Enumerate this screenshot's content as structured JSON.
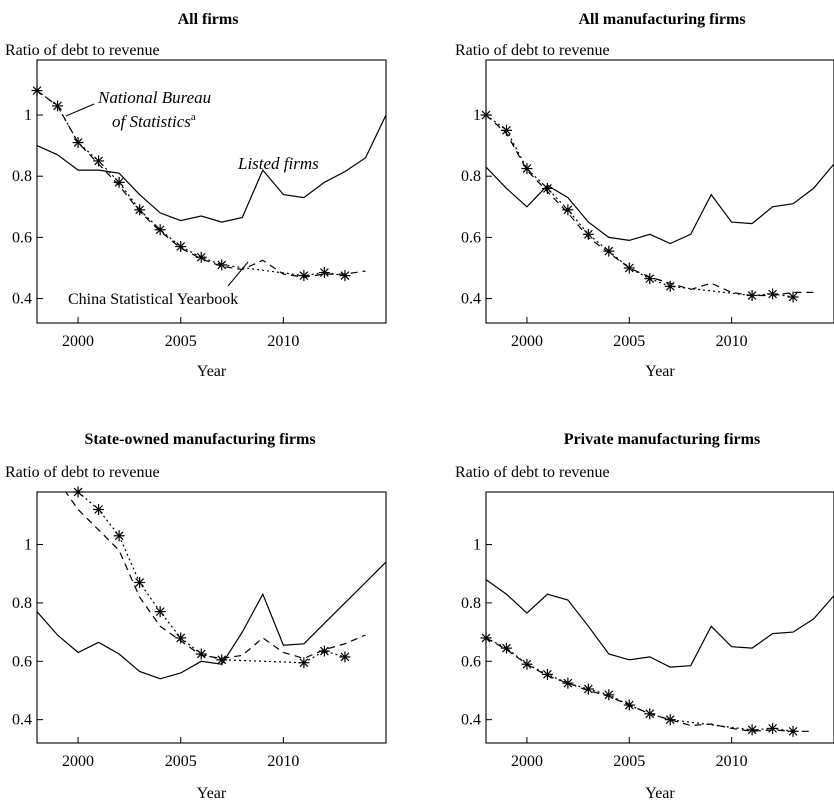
{
  "chart_data": [
    {
      "type": "line",
      "title": "All firms",
      "ylabel": "Ratio of debt to revenue",
      "xlabel": "Year",
      "xlim": [
        1998,
        2015
      ],
      "ylim": [
        0.32,
        1.18
      ],
      "xticks": [
        2000,
        2005,
        2010
      ],
      "yticks": [
        0.4,
        0.6,
        0.8,
        1
      ],
      "ytick_labels": [
        "0.4",
        "0.6",
        "0.8",
        "1"
      ],
      "annotations": {
        "listed": "Listed firms",
        "nbs_line1": "National Bureau",
        "nbs_line2": "of Statistics",
        "nbs_sup": "a",
        "csy": "China Statistical Yearbook"
      },
      "series": [
        {
          "name": "Listed firms",
          "style": "solid",
          "x": [
            1998,
            1999,
            2000,
            2001,
            2002,
            2003,
            2004,
            2005,
            2006,
            2007,
            2008,
            2009,
            2010,
            2011,
            2012,
            2013,
            2014,
            2015
          ],
          "y": [
            0.9,
            0.87,
            0.82,
            0.82,
            0.81,
            0.74,
            0.68,
            0.655,
            0.67,
            0.65,
            0.665,
            0.82,
            0.74,
            0.73,
            0.78,
            0.815,
            0.86,
            1.0
          ]
        },
        {
          "name": "China Statistical Yearbook",
          "style": "dashed",
          "x": [
            1998,
            1999,
            2000,
            2001,
            2002,
            2003,
            2004,
            2005,
            2006,
            2007,
            2008,
            2009,
            2010,
            2011,
            2012,
            2013,
            2014
          ],
          "y": [
            1.08,
            1.03,
            0.91,
            0.84,
            0.77,
            0.685,
            0.62,
            0.565,
            0.53,
            0.505,
            0.495,
            0.525,
            0.48,
            0.47,
            0.48,
            0.48,
            0.49
          ]
        },
        {
          "name": "National Bureau of Statistics",
          "style": "dotted-star",
          "x": [
            1998,
            1999,
            2000,
            2001,
            2002,
            2003,
            2004,
            2005,
            2006,
            2007,
            2011,
            2012,
            2013
          ],
          "y": [
            1.08,
            1.03,
            0.91,
            0.85,
            0.78,
            0.69,
            0.625,
            0.57,
            0.535,
            0.51,
            0.475,
            0.485,
            0.475
          ]
        }
      ]
    },
    {
      "type": "line",
      "title": "All manufacturing firms",
      "ylabel": "Ratio of debt to revenue",
      "xlabel": "Year",
      "xlim": [
        1998,
        2015
      ],
      "ylim": [
        0.32,
        1.18
      ],
      "xticks": [
        2000,
        2005,
        2010
      ],
      "yticks": [
        0.4,
        0.6,
        0.8,
        1
      ],
      "ytick_labels": [
        "0.4",
        "0.6",
        "0.8",
        "1"
      ],
      "series": [
        {
          "name": "Listed firms",
          "style": "solid",
          "x": [
            1998,
            1999,
            2000,
            2001,
            2002,
            2003,
            2004,
            2005,
            2006,
            2007,
            2008,
            2009,
            2010,
            2011,
            2012,
            2013,
            2014,
            2015
          ],
          "y": [
            0.83,
            0.76,
            0.7,
            0.77,
            0.73,
            0.65,
            0.6,
            0.59,
            0.61,
            0.58,
            0.61,
            0.74,
            0.65,
            0.645,
            0.7,
            0.71,
            0.76,
            0.84
          ]
        },
        {
          "name": "China Statistical Yearbook",
          "style": "dashed",
          "x": [
            1998,
            1999,
            2000,
            2001,
            2002,
            2003,
            2004,
            2005,
            2006,
            2007,
            2008,
            2009,
            2010,
            2011,
            2012,
            2013,
            2014
          ],
          "y": [
            1.0,
            0.94,
            0.82,
            0.75,
            0.68,
            0.6,
            0.55,
            0.5,
            0.47,
            0.45,
            0.43,
            0.45,
            0.42,
            0.41,
            0.41,
            0.42,
            0.42
          ]
        },
        {
          "name": "National Bureau of Statistics",
          "style": "dotted-star",
          "x": [
            1998,
            1999,
            2000,
            2001,
            2002,
            2003,
            2004,
            2005,
            2006,
            2007,
            2011,
            2012,
            2013
          ],
          "y": [
            1.0,
            0.95,
            0.825,
            0.76,
            0.69,
            0.61,
            0.555,
            0.5,
            0.465,
            0.44,
            0.41,
            0.415,
            0.405
          ]
        }
      ]
    },
    {
      "type": "line",
      "title": "State-owned manufacturing firms",
      "ylabel": "Ratio of debt to revenue",
      "xlabel": "Year",
      "xlim": [
        1998,
        2015
      ],
      "ylim": [
        0.32,
        1.18
      ],
      "xticks": [
        2000,
        2005,
        2010
      ],
      "yticks": [
        0.4,
        0.6,
        0.8,
        1
      ],
      "ytick_labels": [
        "0.4",
        "0.6",
        "0.8",
        "1"
      ],
      "series": [
        {
          "name": "Listed firms",
          "style": "solid",
          "x": [
            1998,
            1999,
            2000,
            2001,
            2002,
            2003,
            2004,
            2005,
            2006,
            2007,
            2008,
            2009,
            2010,
            2011,
            2012,
            2013,
            2014,
            2015
          ],
          "y": [
            0.77,
            0.69,
            0.63,
            0.665,
            0.625,
            0.565,
            0.54,
            0.56,
            0.6,
            0.59,
            0.7,
            0.83,
            0.655,
            0.66,
            0.73,
            0.8,
            0.87,
            0.94
          ]
        },
        {
          "name": "China Statistical Yearbook",
          "style": "dashed",
          "x": [
            1999,
            2000,
            2001,
            2002,
            2003,
            2004,
            2005,
            2006,
            2007,
            2008,
            2009,
            2010,
            2011,
            2012,
            2013,
            2014
          ],
          "y": [
            1.22,
            1.12,
            1.05,
            0.98,
            0.82,
            0.72,
            0.67,
            0.62,
            0.61,
            0.62,
            0.68,
            0.63,
            0.61,
            0.64,
            0.66,
            0.69
          ]
        },
        {
          "name": "National Bureau of Statistics",
          "style": "dotted-star",
          "x": [
            2000,
            2001,
            2002,
            2003,
            2004,
            2005,
            2006,
            2007,
            2011,
            2012,
            2013
          ],
          "y": [
            1.18,
            1.12,
            1.03,
            0.87,
            0.77,
            0.68,
            0.625,
            0.605,
            0.595,
            0.635,
            0.615
          ]
        }
      ]
    },
    {
      "type": "line",
      "title": "Private manufacturing firms",
      "ylabel": "Ratio of debt to revenue",
      "xlabel": "Year",
      "xlim": [
        1998,
        2015
      ],
      "ylim": [
        0.32,
        1.18
      ],
      "xticks": [
        2000,
        2005,
        2010
      ],
      "yticks": [
        0.4,
        0.6,
        0.8,
        1
      ],
      "ytick_labels": [
        "0.4",
        "0.6",
        "0.8",
        "1"
      ],
      "series": [
        {
          "name": "Listed firms",
          "style": "solid",
          "x": [
            1998,
            1999,
            2000,
            2001,
            2002,
            2003,
            2004,
            2005,
            2006,
            2007,
            2008,
            2009,
            2010,
            2011,
            2012,
            2013,
            2014,
            2015
          ],
          "y": [
            0.88,
            0.83,
            0.765,
            0.83,
            0.81,
            0.72,
            0.625,
            0.605,
            0.615,
            0.58,
            0.585,
            0.72,
            0.65,
            0.645,
            0.695,
            0.7,
            0.745,
            0.825
          ]
        },
        {
          "name": "China Statistical Yearbook",
          "style": "dashed",
          "x": [
            1998,
            1999,
            2000,
            2001,
            2002,
            2003,
            2004,
            2005,
            2006,
            2007,
            2008,
            2009,
            2010,
            2011,
            2012,
            2013,
            2014
          ],
          "y": [
            0.68,
            0.64,
            0.59,
            0.55,
            0.525,
            0.5,
            0.48,
            0.45,
            0.42,
            0.4,
            0.38,
            0.385,
            0.37,
            0.36,
            0.365,
            0.36,
            0.36
          ]
        },
        {
          "name": "National Bureau of Statistics",
          "style": "dotted-star",
          "x": [
            1998,
            1999,
            2000,
            2001,
            2002,
            2003,
            2004,
            2005,
            2006,
            2007,
            2011,
            2012,
            2013
          ],
          "y": [
            0.68,
            0.645,
            0.59,
            0.555,
            0.525,
            0.505,
            0.485,
            0.45,
            0.42,
            0.4,
            0.365,
            0.37,
            0.36
          ]
        }
      ]
    }
  ]
}
